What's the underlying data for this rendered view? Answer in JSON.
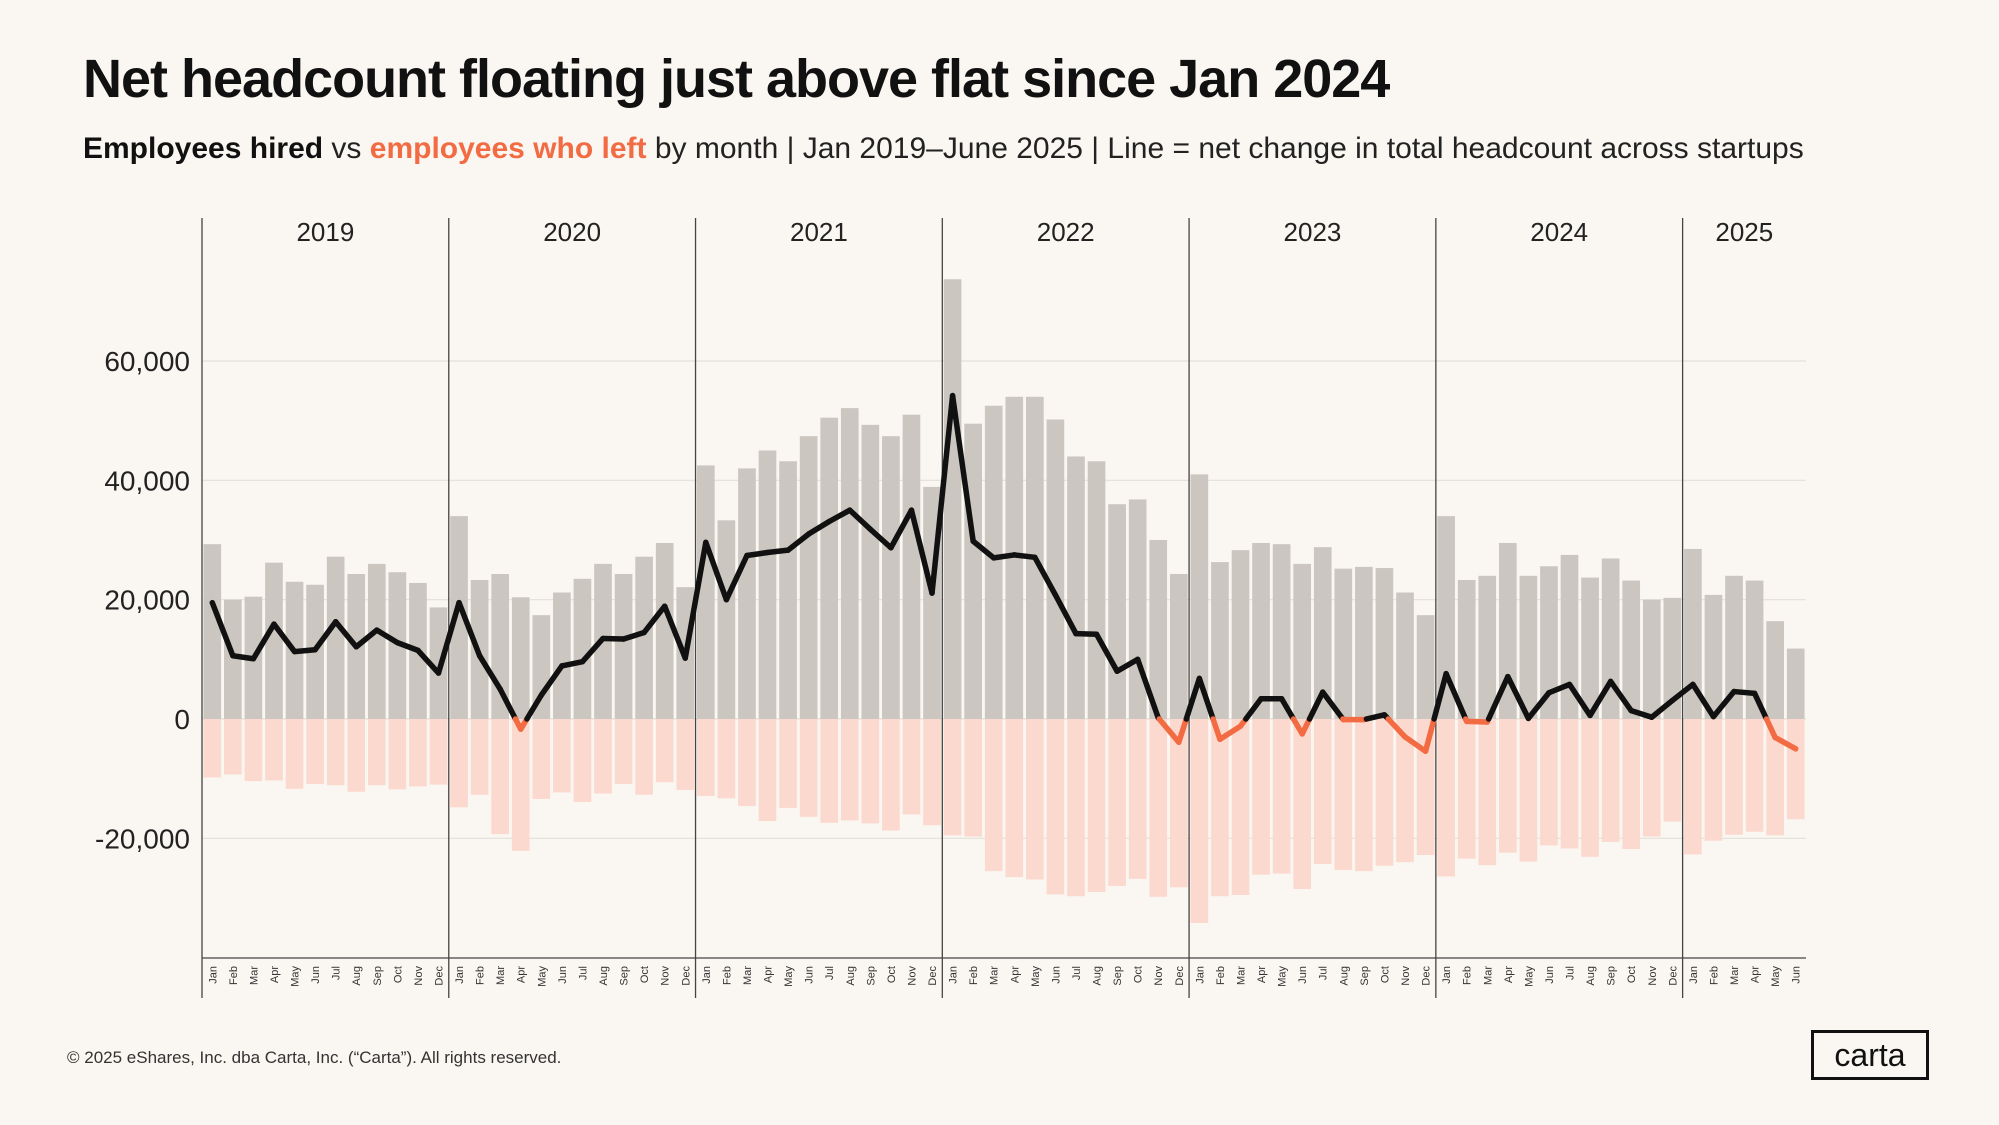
{
  "title": "Net headcount floating just above flat since Jan 2024",
  "subtitle": {
    "part_hired": "Employees hired",
    "part_vs": " vs ",
    "part_left": "employees who left",
    "part_rest": " by month  |  Jan 2019–June 2025  |  Line = net change in total headcount across startups"
  },
  "footer": "© 2025 eShares, Inc. dba Carta, Inc. (“Carta”). All rights reserved.",
  "logo": "carta",
  "colors": {
    "hired_bar": "#cbc6c0",
    "left_bar": "#fcd9ce",
    "net_line": "#111111",
    "net_line_negative": "#f26b43",
    "accent": "#f26b43",
    "background": "#faf7f2"
  },
  "chart_data": {
    "type": "bar",
    "title": "Net headcount floating just above flat since Jan 2024",
    "ylim": [
      -40000,
      80000
    ],
    "yticks": [
      -20000,
      0,
      20000,
      40000,
      60000
    ],
    "ytick_labels": [
      "-20,000",
      "0",
      "20,000",
      "40,000",
      "60,000"
    ],
    "grid": true,
    "years": [
      {
        "label": "2019",
        "months": 12
      },
      {
        "label": "2020",
        "months": 12
      },
      {
        "label": "2021",
        "months": 12
      },
      {
        "label": "2022",
        "months": 12
      },
      {
        "label": "2023",
        "months": 12
      },
      {
        "label": "2024",
        "months": 12
      },
      {
        "label": "2025",
        "months": 6
      }
    ],
    "month_labels": [
      "Jan",
      "Feb",
      "Mar",
      "Apr",
      "May",
      "Jun",
      "Jul",
      "Aug",
      "Sep",
      "Oct",
      "Nov",
      "Dec"
    ],
    "series": [
      {
        "name": "Employees hired",
        "values": [
          29300,
          20000,
          20500,
          26200,
          23000,
          22500,
          27200,
          24300,
          26000,
          24600,
          22800,
          18700,
          34000,
          23300,
          24300,
          20400,
          17400,
          21200,
          23500,
          26000,
          24300,
          27200,
          29500,
          22100,
          42500,
          33300,
          42000,
          45000,
          43200,
          47400,
          50500,
          52100,
          49300,
          47400,
          51000,
          38900,
          73700,
          49500,
          52500,
          54000,
          54000,
          50200,
          44000,
          43200,
          36000,
          36800,
          30000,
          24300,
          41000,
          26300,
          28300,
          29500,
          29300,
          26000,
          28800,
          25200,
          25500,
          25300,
          21200,
          17400,
          34000,
          23300,
          24000,
          29500,
          24000,
          25600,
          27500,
          23700,
          26900,
          23200,
          20000,
          20300,
          28500,
          20800,
          24000,
          23200,
          16400,
          11800
        ]
      },
      {
        "name": "Employees who left",
        "values": [
          -9800,
          -9300,
          -10400,
          -10300,
          -11700,
          -10900,
          -11100,
          -12200,
          -11100,
          -11800,
          -11300,
          -11000,
          -14800,
          -12700,
          -19300,
          -22100,
          -13400,
          -12300,
          -13900,
          -12500,
          -10900,
          -12700,
          -10600,
          -11900,
          -12900,
          -13300,
          -14600,
          -17100,
          -14900,
          -16400,
          -17400,
          -17000,
          -17500,
          -18700,
          -16000,
          -17800,
          -19500,
          -19700,
          -25500,
          -26500,
          -26900,
          -29400,
          -29700,
          -29000,
          -28000,
          -26800,
          -29800,
          -28200,
          -34200,
          -29700,
          -29500,
          -26100,
          -25900,
          -28500,
          -24300,
          -25300,
          -25500,
          -24600,
          -24000,
          -22800,
          -26400,
          -23400,
          -24500,
          -22400,
          -23900,
          -21200,
          -21700,
          -23100,
          -20600,
          -21800,
          -19700,
          -17200,
          -22700,
          -20400,
          -19400,
          -18900,
          -19500,
          -16800
        ]
      },
      {
        "name": "Net change in total headcount",
        "values": [
          19500,
          10600,
          10100,
          15900,
          11300,
          11600,
          16300,
          12100,
          14900,
          12800,
          11500,
          7700,
          19500,
          10600,
          5000,
          -1700,
          4000,
          8900,
          9600,
          13500,
          13400,
          14500,
          18900,
          10200,
          29600,
          20000,
          27400,
          27900,
          28300,
          31000,
          33100,
          35000,
          31800,
          28700,
          35000,
          21100,
          54200,
          29800,
          27000,
          27500,
          27100,
          20800,
          14300,
          14200,
          8000,
          10000,
          200,
          -3900,
          6800,
          -3400,
          -1200,
          3400,
          3400,
          -2500,
          4500,
          -100,
          -100,
          700,
          -3000,
          -5400,
          7600,
          -400,
          -500,
          7100,
          100,
          4400,
          5800,
          600,
          6300,
          1400,
          300,
          3100,
          5800,
          400,
          4600,
          4300,
          -3100,
          -5000
        ]
      }
    ]
  }
}
